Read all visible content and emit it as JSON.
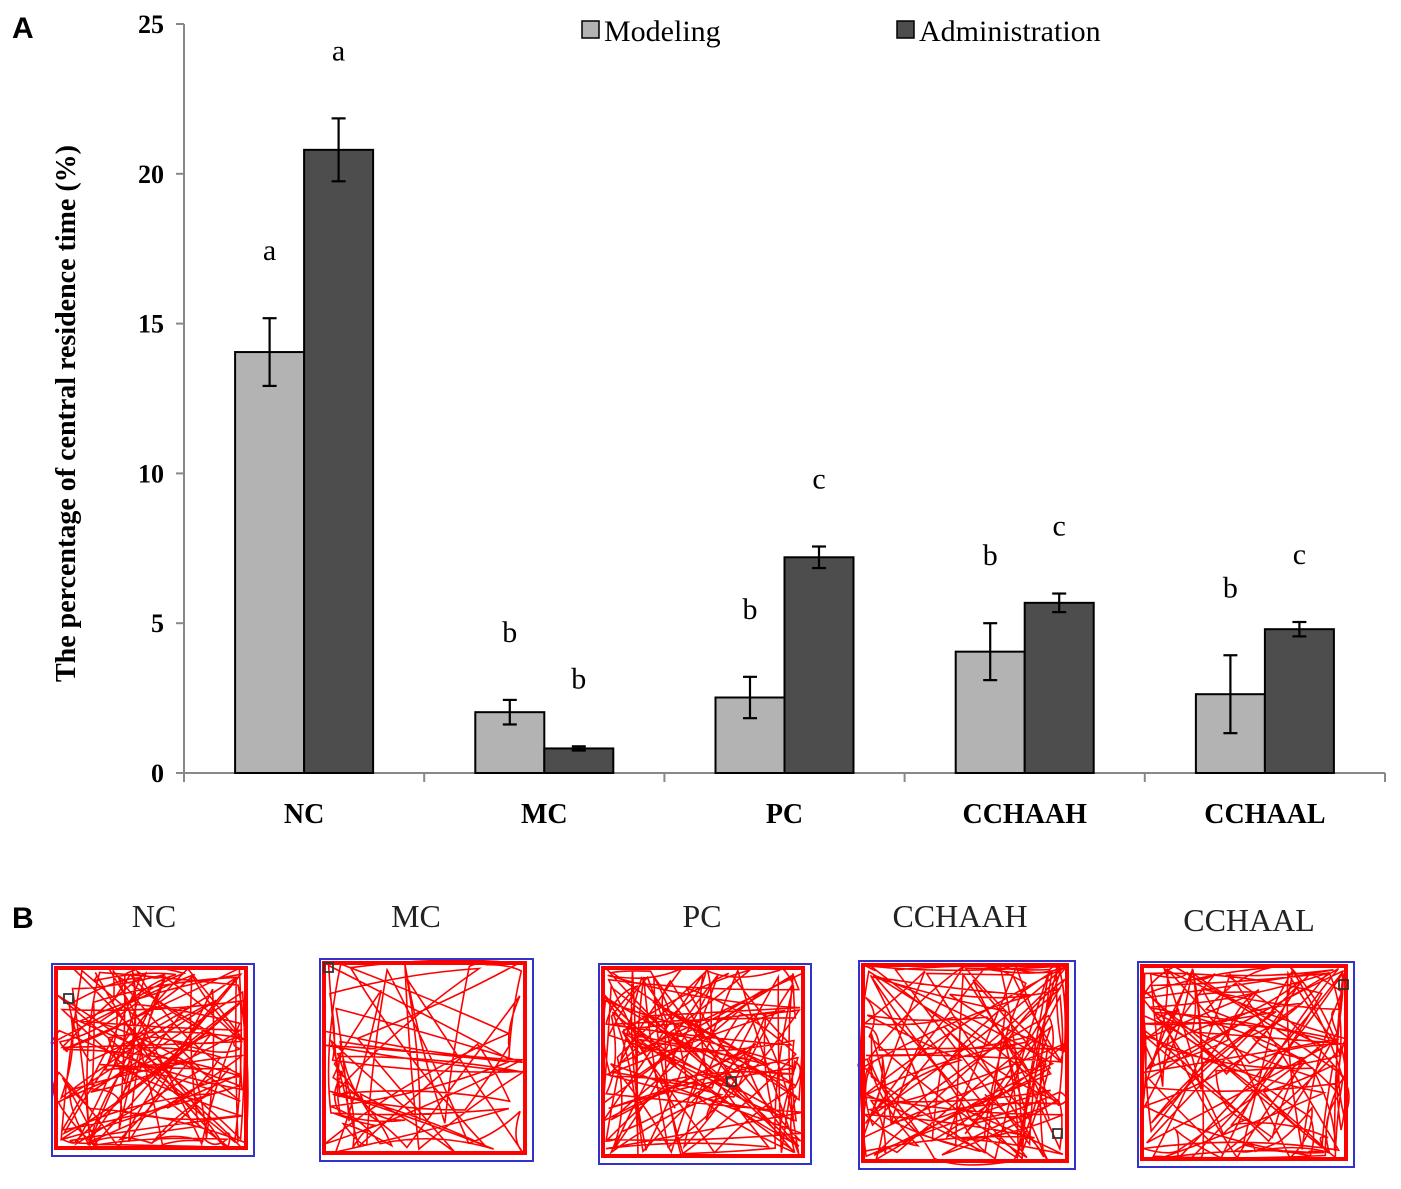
{
  "panels": {
    "a": "A",
    "b": "B"
  },
  "chart_data": {
    "type": "bar",
    "categories": [
      "NC",
      "MC",
      "PC",
      "CCHAAH",
      "CCHAAL"
    ],
    "series": [
      {
        "name": "Modeling",
        "color": "#b3b3b3",
        "values": [
          14.05,
          2.03,
          2.52,
          4.05,
          2.63
        ],
        "errors": [
          1.13,
          0.41,
          0.69,
          0.95,
          1.3
        ],
        "letters": [
          "a",
          "b",
          "b",
          "b",
          "b"
        ]
      },
      {
        "name": "Administration",
        "color": "#4d4d4d",
        "values": [
          20.8,
          0.82,
          7.2,
          5.68,
          4.8
        ],
        "errors": [
          1.05,
          0.07,
          0.36,
          0.31,
          0.24
        ],
        "letters": [
          "a",
          "b",
          "c",
          "c",
          "c"
        ]
      }
    ],
    "ylabel": "The percentage of central residence time (%)",
    "xlabel": "",
    "ylim": [
      0,
      25
    ],
    "yticks": [
      0,
      5,
      10,
      15,
      20,
      25
    ],
    "legend_position": "top-right",
    "grid": false
  },
  "tracks": {
    "titles": [
      "NC",
      "MC",
      "PC",
      "CCHAAH",
      "CCHAAL"
    ],
    "path_color": "#ff0000",
    "border_color": "#3333cc",
    "marker_color": "#333333"
  }
}
